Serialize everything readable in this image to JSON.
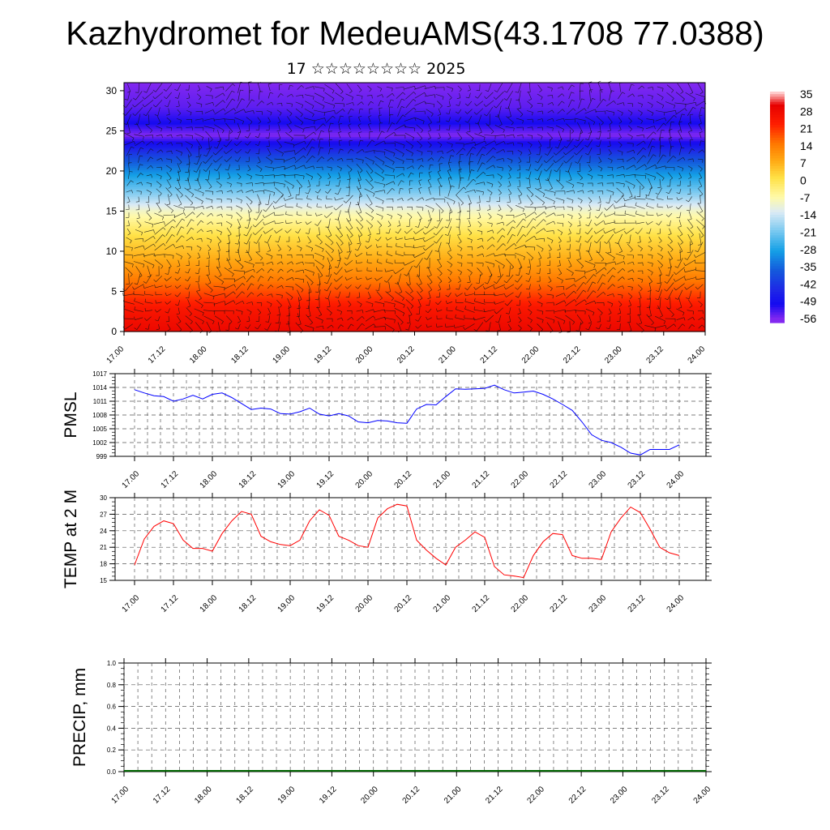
{
  "title": "Kazhydromet for MedeuAMS(43.1708 77.0388)",
  "subtitle": "17 ☆☆☆☆☆☆☆☆ 2025",
  "chart_data": [
    {
      "type": "heatmap",
      "name": "temperature-cross-section",
      "x_ticks": [
        "17.00",
        "17.12",
        "18.00",
        "18.12",
        "19.00",
        "19.12",
        "20.00",
        "20.12",
        "21.00",
        "21.12",
        "22.00",
        "22.12",
        "23.00",
        "23.12",
        "24.00"
      ],
      "y_ticks": [
        "0",
        "5",
        "10",
        "15",
        "20",
        "25",
        "30"
      ],
      "ylim": [
        0,
        31
      ],
      "colorbar_labels": [
        "35",
        "28",
        "21",
        "14",
        "7",
        "0",
        "-7",
        "-14",
        "-21",
        "-28",
        "-35",
        "-42",
        "-49",
        "-56"
      ],
      "profile": [
        {
          "level": 0,
          "value": 28
        },
        {
          "level": 3,
          "value": 24
        },
        {
          "level": 6,
          "value": 15
        },
        {
          "level": 9,
          "value": 7
        },
        {
          "level": 12,
          "value": 0
        },
        {
          "level": 15,
          "value": -10
        },
        {
          "level": 17,
          "value": -20
        },
        {
          "level": 19.5,
          "value": -30
        },
        {
          "level": 22,
          "value": -42
        },
        {
          "level": 24.5,
          "value": -58
        },
        {
          "level": 26,
          "value": -52
        },
        {
          "level": 28,
          "value": -56
        },
        {
          "level": 31,
          "value": -58
        }
      ],
      "wind_barbs": true
    },
    {
      "type": "line",
      "ylabel": "PMSL",
      "ylim": [
        999,
        1017
      ],
      "y_ticks": [
        "1017",
        "1014",
        "1011",
        "1008",
        "1005",
        "1002",
        "999"
      ],
      "x_ticks": [
        "17.00",
        "17.12",
        "18.00",
        "18.12",
        "19.00",
        "19.12",
        "20.00",
        "20.12",
        "21.00",
        "21.12",
        "22.00",
        "22.12",
        "23.00",
        "23.12",
        "24.00"
      ],
      "color": "#0000ff",
      "values": [
        1013.5,
        1012.8,
        1012.2,
        1012.0,
        1011.0,
        1011.5,
        1012.3,
        1011.5,
        1012.5,
        1012.8,
        1011.8,
        1010.5,
        1009.2,
        1009.5,
        1009.3,
        1008.3,
        1008.2,
        1008.7,
        1009.5,
        1008.2,
        1007.8,
        1008.3,
        1007.8,
        1006.5,
        1006.3,
        1006.8,
        1006.7,
        1006.3,
        1006.2,
        1009.3,
        1010.3,
        1010.2,
        1012.0,
        1013.7,
        1013.6,
        1013.7,
        1013.8,
        1014.5,
        1013.5,
        1012.8,
        1013.0,
        1013.2,
        1012.5,
        1011.5,
        1010.3,
        1009.0,
        1006.5,
        1003.7,
        1002.5,
        1002.0,
        1001.0,
        999.7,
        999.3,
        1000.5,
        1000.5,
        1000.5,
        1001.5
      ],
      "x_start_index": 0
    },
    {
      "type": "line",
      "ylabel": "TEMP at 2 M",
      "ylim": [
        15,
        30
      ],
      "y_ticks": [
        "30",
        "27",
        "24",
        "21",
        "18",
        "15"
      ],
      "x_ticks": [
        "17.00",
        "17.12",
        "18.00",
        "18.12",
        "19.00",
        "19.12",
        "20.00",
        "20.12",
        "21.00",
        "21.12",
        "22.00",
        "22.12",
        "23.00",
        "23.12",
        "24.00"
      ],
      "color": "#ff0000",
      "values": [
        17.8,
        22.5,
        24.8,
        25.8,
        25.3,
        22.3,
        20.8,
        20.8,
        20.3,
        23.5,
        25.8,
        27.5,
        27.0,
        23.0,
        22.0,
        21.5,
        21.3,
        22.3,
        25.8,
        27.8,
        26.8,
        23.0,
        22.3,
        21.3,
        21.0,
        26.3,
        28.0,
        28.8,
        28.5,
        22.3,
        20.5,
        19.0,
        17.8,
        21.0,
        22.3,
        23.8,
        22.8,
        17.5,
        16.0,
        15.8,
        15.5,
        19.5,
        22.0,
        23.5,
        23.3,
        19.5,
        19.0,
        19.0,
        18.8,
        23.8,
        26.3,
        28.3,
        27.3,
        24.3,
        21.0,
        20.0,
        19.5
      ],
      "x_start_index": 0
    },
    {
      "type": "line",
      "ylabel": "PRECIP, mm",
      "ylim": [
        0,
        1
      ],
      "y_ticks": [
        "1.0",
        "0.8",
        "0.6",
        "0.4",
        "0.2",
        "0.0"
      ],
      "x_ticks": [
        "17.00",
        "17.12",
        "18.00",
        "18.12",
        "19.00",
        "19.12",
        "20.00",
        "20.12",
        "21.00",
        "21.12",
        "22.00",
        "22.12",
        "23.00",
        "23.12",
        "24.00"
      ],
      "color": "#006400",
      "values": []
    }
  ]
}
